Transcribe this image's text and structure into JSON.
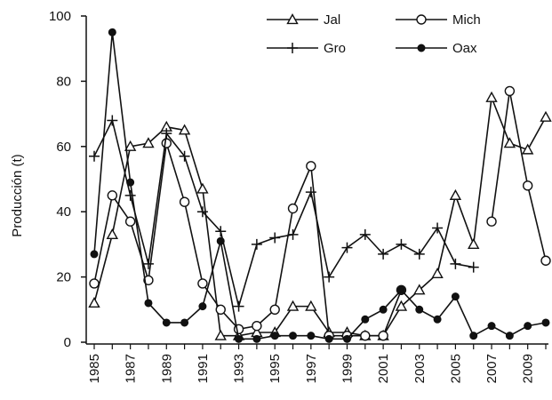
{
  "chart_data": {
    "type": "line",
    "title": "",
    "xlabel": "",
    "ylabel": "Producción (t)",
    "xlim": [
      1985,
      2010
    ],
    "ylim": [
      0,
      100
    ],
    "yticks": [
      0,
      20,
      40,
      60,
      80,
      100
    ],
    "xtick_labels": [
      "1985",
      "1987",
      "1989",
      "1991",
      "1993",
      "1995",
      "1997",
      "1999",
      "2001",
      "2003",
      "2005",
      "2007",
      "2009"
    ],
    "grid": false,
    "legend_position": "top-right",
    "x": [
      1985,
      1986,
      1987,
      1988,
      1989,
      1990,
      1991,
      1992,
      1993,
      1994,
      1995,
      1996,
      1997,
      1998,
      1999,
      2000,
      2001,
      2002,
      2003,
      2004,
      2005,
      2006,
      2007,
      2008,
      2009,
      2010
    ],
    "series": [
      {
        "name": "Jal",
        "marker": "triangle-open",
        "values": [
          12,
          33,
          60,
          61,
          66,
          65,
          47,
          2,
          2,
          3,
          3,
          11,
          11,
          3,
          3,
          2,
          2,
          11,
          16,
          21,
          45,
          30,
          75,
          61,
          59,
          69
        ]
      },
      {
        "name": "Mich",
        "marker": "circle-open",
        "values": [
          18,
          45,
          37,
          19,
          61,
          43,
          18,
          10,
          4,
          5,
          10,
          41,
          54,
          2,
          2,
          2,
          2,
          16,
          null,
          null,
          null,
          null,
          37,
          77,
          48,
          25
        ]
      },
      {
        "name": "Gro",
        "marker": "plus",
        "values": [
          57,
          68,
          45,
          24,
          64,
          57,
          40,
          34,
          11,
          30,
          32,
          33,
          46,
          20,
          29,
          33,
          27,
          30,
          27,
          35,
          24,
          23,
          null,
          null,
          null,
          null
        ]
      },
      {
        "name": "Oax",
        "marker": "circle-filled",
        "values": [
          27,
          95,
          49,
          12,
          6,
          6,
          11,
          31,
          1,
          1,
          2,
          2,
          2,
          1,
          1,
          7,
          10,
          16,
          10,
          7,
          14,
          2,
          5,
          2,
          5,
          6
        ]
      }
    ]
  }
}
